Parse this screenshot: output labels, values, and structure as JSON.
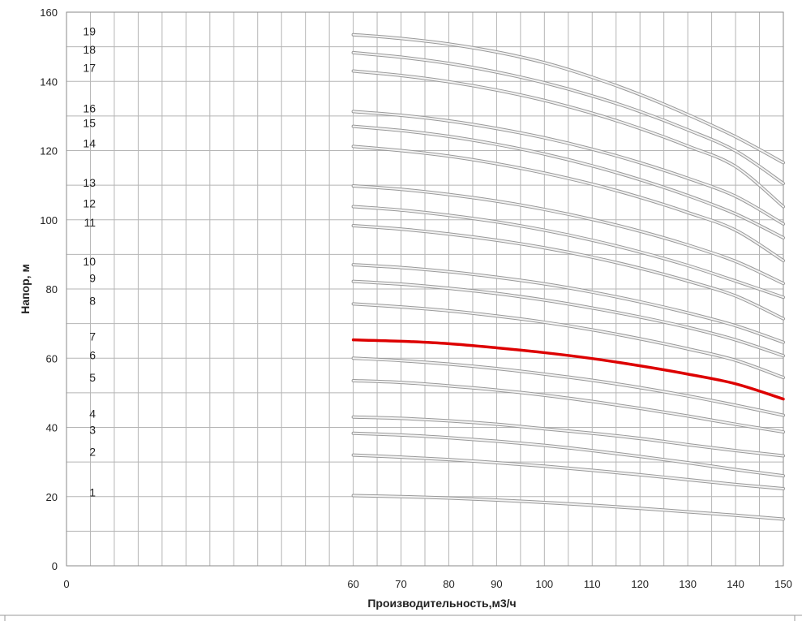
{
  "chart_data": {
    "type": "line",
    "title": "",
    "xlabel": "Производительность,м3/ч",
    "ylabel": "Напор, м",
    "xlim": [
      0,
      150
    ],
    "ylim": [
      0,
      160
    ],
    "x_ticks": [
      0,
      60,
      70,
      80,
      90,
      100,
      110,
      120,
      130,
      140,
      150
    ],
    "y_ticks": [
      0,
      20,
      40,
      60,
      80,
      100,
      120,
      140,
      160
    ],
    "grid": true,
    "legend": "none",
    "colors": {
      "default_line": "#bdbdbd",
      "highlight_line": "#dd0000",
      "grid": "#b5b5b5"
    },
    "highlighted_series": "7",
    "x": [
      60,
      70,
      80,
      90,
      100,
      110,
      120,
      130,
      140,
      150
    ],
    "series": [
      {
        "name": "1",
        "values": [
          20.3,
          20.0,
          19.6,
          19.0,
          18.3,
          17.5,
          16.6,
          15.6,
          14.6,
          13.5
        ]
      },
      {
        "name": "2",
        "values": [
          32.0,
          31.4,
          30.7,
          29.8,
          28.8,
          27.6,
          26.3,
          24.9,
          23.5,
          22.3
        ]
      },
      {
        "name": "3",
        "values": [
          38.3,
          37.8,
          37.0,
          36.0,
          34.8,
          33.3,
          31.6,
          29.8,
          27.8,
          26.0
        ]
      },
      {
        "name": "4",
        "values": [
          43.0,
          42.6,
          41.9,
          40.9,
          39.6,
          38.3,
          36.8,
          35.0,
          33.3,
          31.8
        ]
      },
      {
        "name": "5",
        "values": [
          53.5,
          53.0,
          52.0,
          50.8,
          49.3,
          47.5,
          45.5,
          43.3,
          40.9,
          38.7
        ]
      },
      {
        "name": "6",
        "values": [
          60.0,
          59.3,
          58.3,
          57.0,
          55.4,
          53.6,
          51.5,
          49.1,
          46.4,
          43.5
        ]
      },
      {
        "name": "7",
        "values": [
          65.3,
          64.9,
          64.2,
          63.0,
          61.6,
          59.9,
          57.8,
          55.4,
          52.6,
          48.2
        ]
      },
      {
        "name": "8",
        "values": [
          75.7,
          74.8,
          73.7,
          72.2,
          70.4,
          68.2,
          65.6,
          62.7,
          59.4,
          54.4
        ]
      },
      {
        "name": "9",
        "values": [
          82.2,
          81.4,
          80.2,
          78.7,
          76.8,
          74.5,
          71.9,
          68.9,
          65.3,
          60.7
        ]
      },
      {
        "name": "10",
        "values": [
          87.0,
          86.2,
          85.0,
          83.4,
          81.5,
          79.1,
          76.3,
          73.1,
          69.4,
          64.6
        ]
      },
      {
        "name": "11",
        "values": [
          98.3,
          97.3,
          95.9,
          94.1,
          91.9,
          89.2,
          86.0,
          82.3,
          78.0,
          71.4
        ]
      },
      {
        "name": "12",
        "values": [
          103.8,
          102.8,
          101.3,
          99.4,
          97.0,
          94.1,
          90.7,
          86.8,
          82.3,
          77.6
        ]
      },
      {
        "name": "13",
        "values": [
          109.8,
          108.8,
          107.3,
          105.4,
          103.0,
          100.1,
          96.7,
          92.7,
          88.0,
          81.6
        ]
      },
      {
        "name": "14",
        "values": [
          121.2,
          120.0,
          118.4,
          116.2,
          113.5,
          110.3,
          106.5,
          102.1,
          97.0,
          88.2
        ]
      },
      {
        "name": "15",
        "values": [
          127.0,
          125.8,
          124.1,
          121.8,
          119.0,
          115.6,
          111.6,
          107.0,
          101.7,
          94.8
        ]
      },
      {
        "name": "16",
        "values": [
          131.3,
          130.2,
          128.6,
          126.4,
          123.7,
          120.4,
          116.5,
          112.0,
          106.8,
          98.8
        ]
      },
      {
        "name": "17",
        "values": [
          143.0,
          141.7,
          139.9,
          137.5,
          134.5,
          130.8,
          126.4,
          121.3,
          115.4,
          103.8
        ]
      },
      {
        "name": "18",
        "values": [
          148.3,
          147.0,
          145.2,
          142.7,
          139.6,
          135.8,
          131.3,
          126.0,
          119.9,
          110.5
        ]
      },
      {
        "name": "19",
        "values": [
          153.5,
          152.4,
          150.8,
          148.5,
          145.4,
          141.2,
          136.2,
          130.4,
          124.0,
          116.5
        ]
      }
    ]
  }
}
